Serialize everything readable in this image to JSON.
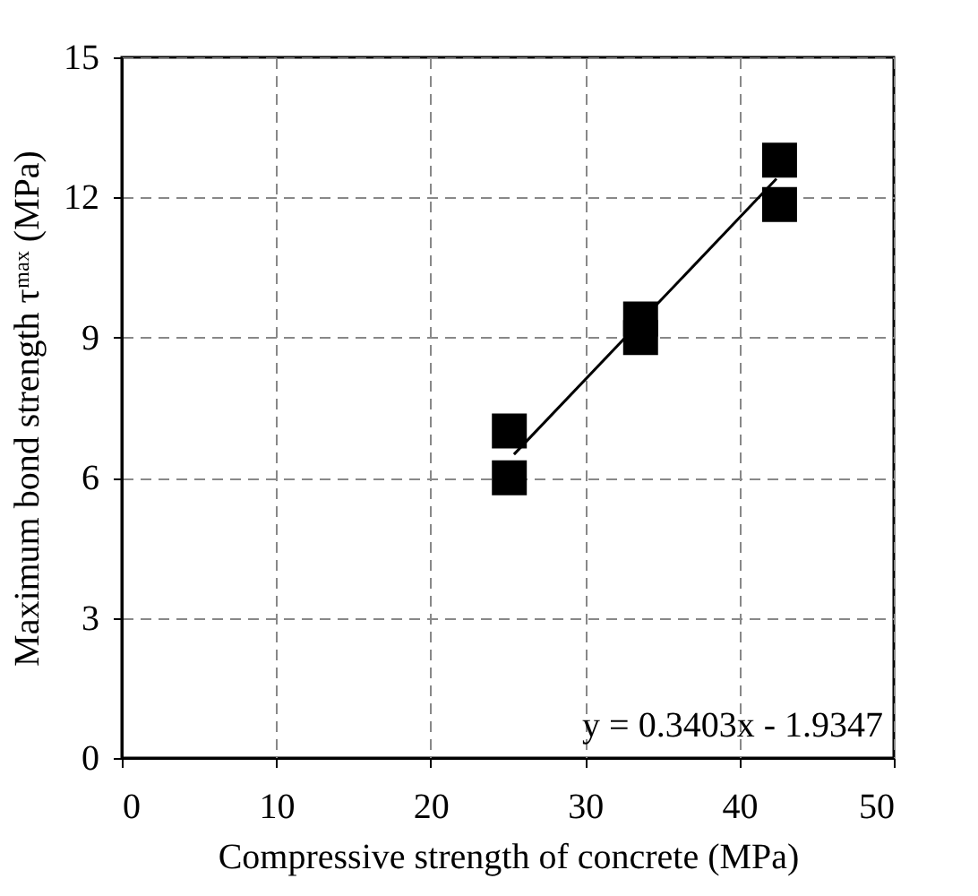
{
  "chart_data": {
    "type": "scatter",
    "xlabel": "Compressive strength of concrete (MPa)",
    "ylabel": "Maximum bond strength τᵐᵃˣ  (MPa)",
    "xlim": [
      0,
      50
    ],
    "xticks": [
      0,
      10,
      20,
      30,
      40,
      50
    ],
    "ylim": [
      0,
      15
    ],
    "yticks": [
      0,
      3,
      6,
      9,
      12,
      15
    ],
    "grid": true,
    "marker": "square",
    "series": [
      {
        "color": "#000000",
        "x": [
          25.1,
          25.1,
          33.6,
          33.6,
          42.6,
          42.6
        ],
        "values": [
          7.0,
          6.0,
          9.4,
          9.0,
          12.8,
          11.85
        ]
      },
      {
        "type": "line",
        "color": "#000000",
        "marker": "none",
        "x": [
          25.4,
          42.4
        ],
        "values": [
          6.5,
          12.4
        ]
      }
    ],
    "annotations": [
      "y = 0.3403x - 1.9347"
    ]
  }
}
